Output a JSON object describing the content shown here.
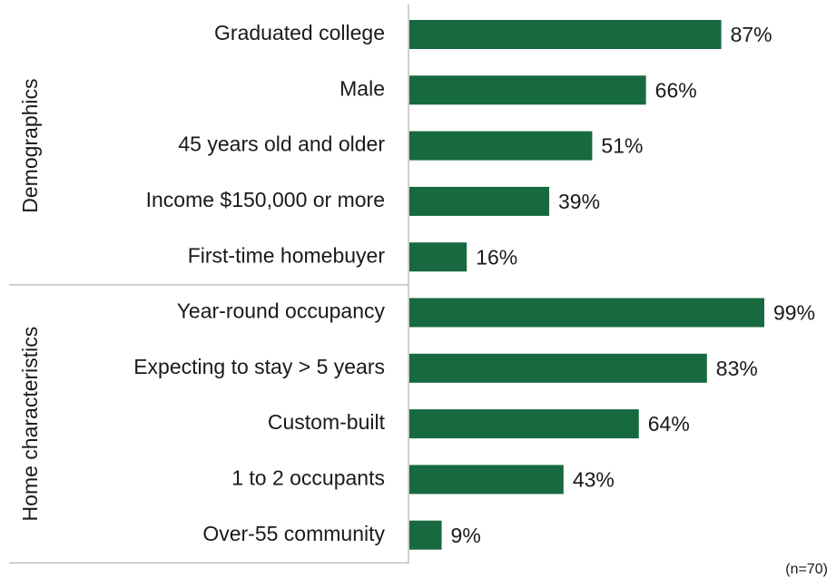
{
  "chart_data": {
    "type": "bar",
    "orientation": "horizontal",
    "color": "#17693f",
    "note": "(n=70)",
    "groups": [
      {
        "name": "Demographics",
        "categories": [
          "Graduated college",
          "Male",
          "45 years old and older",
          "Income $150,000 or more",
          "First-time homebuyer"
        ],
        "values": [
          87,
          66,
          51,
          39,
          16
        ],
        "value_labels": [
          "87%",
          "66%",
          "51%",
          "39%",
          "16%"
        ]
      },
      {
        "name": "Home characteristics",
        "categories": [
          "Year-round occupancy",
          "Expecting to stay > 5 years",
          "Custom-built",
          "1 to 2 occupants",
          "Over-55 community"
        ],
        "values": [
          99,
          83,
          64,
          43,
          9
        ],
        "value_labels": [
          "99%",
          "83%",
          "64%",
          "43%",
          "9%"
        ]
      }
    ]
  }
}
